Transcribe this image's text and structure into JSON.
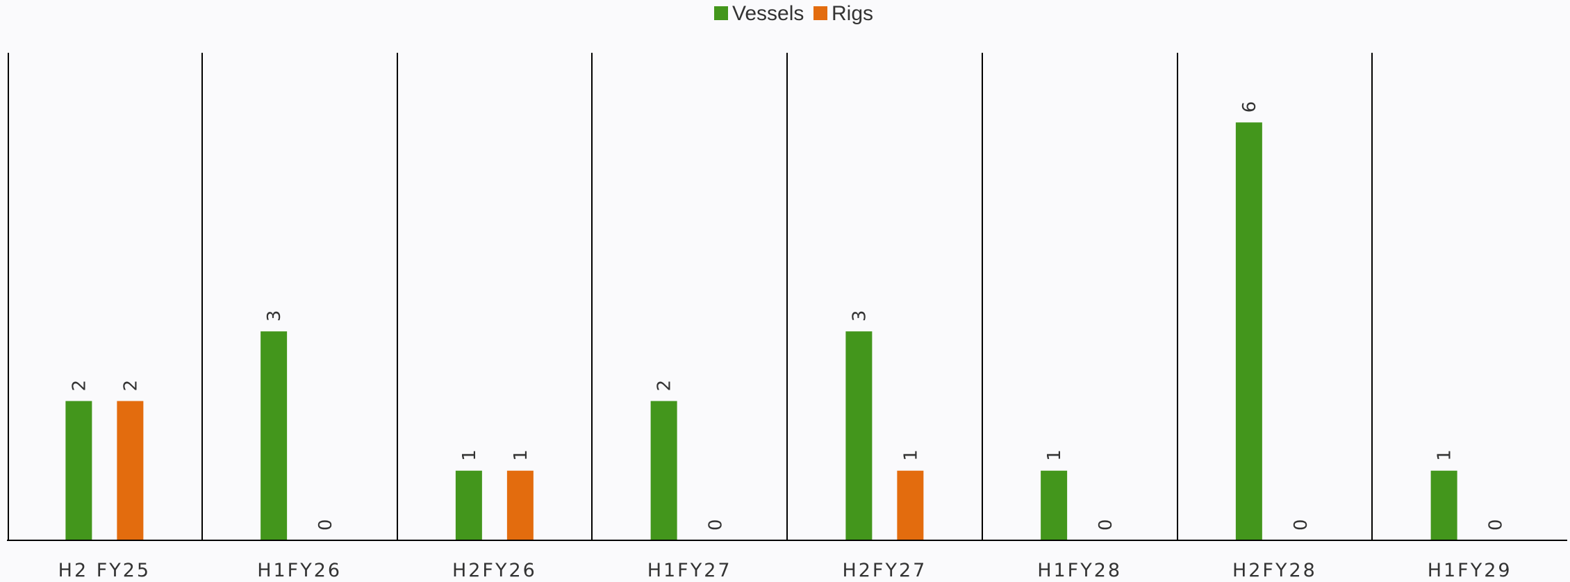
{
  "chart_data": {
    "type": "bar",
    "categories": [
      "H2 FY25",
      "H1FY26",
      "H2FY26",
      "H1FY27",
      "H2FY27",
      "H1FY28",
      "H2FY28",
      "H1FY29"
    ],
    "series": [
      {
        "name": "Vessels",
        "color": "#43961c",
        "values": [
          2,
          3,
          1,
          2,
          3,
          1,
          6,
          1
        ]
      },
      {
        "name": "Rigs",
        "color": "#e36c0e",
        "values": [
          2,
          0,
          1,
          0,
          1,
          0,
          0,
          0
        ]
      }
    ],
    "title": "",
    "xlabel": "",
    "ylabel": "",
    "ylim": [
      0,
      7
    ],
    "legend": "top-center",
    "grid": false,
    "data_labels": true
  }
}
